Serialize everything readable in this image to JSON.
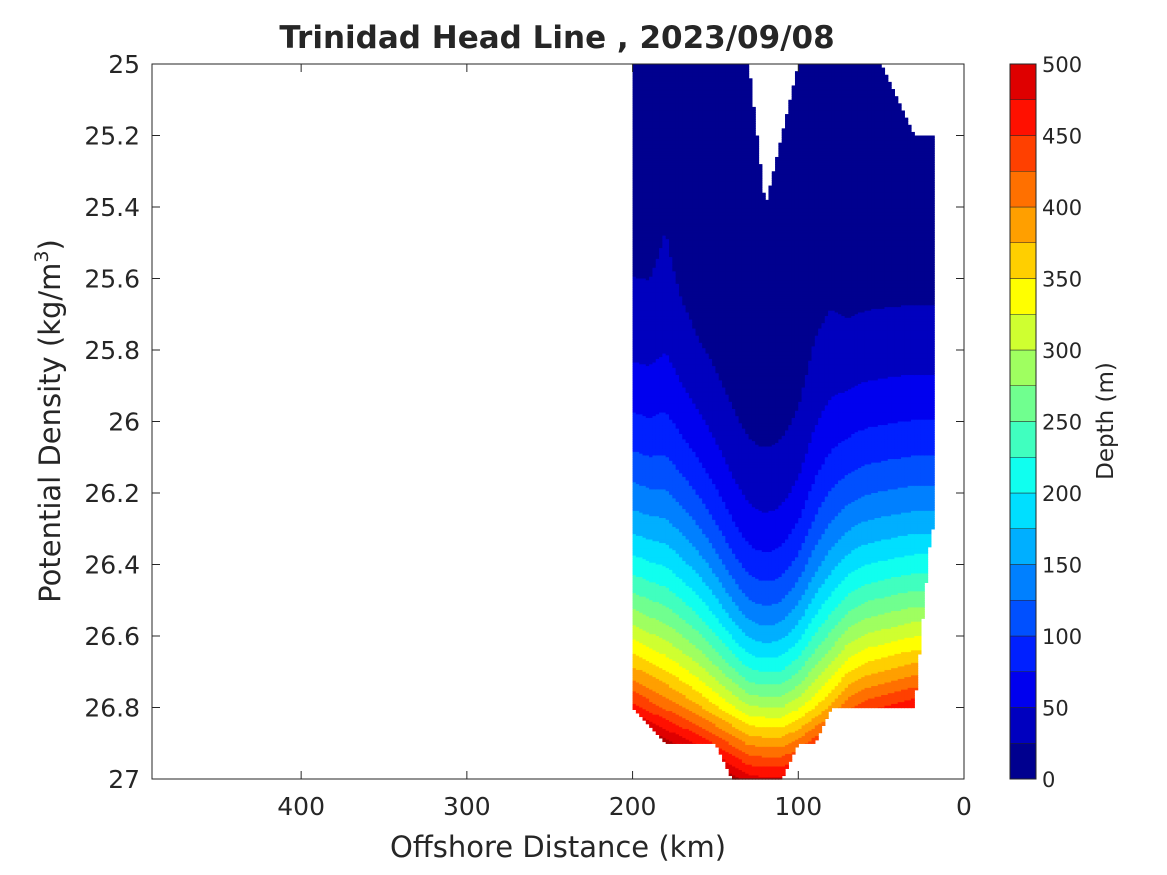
{
  "chart_data": {
    "type": "contour",
    "title": "Trinidad Head Line , 2023/09/08",
    "xlabel": "Offshore Distance (km)",
    "ylabel_main": "Potential Density (kg/m",
    "ylabel_sup": "3",
    "ylabel_close": ")",
    "xlim": [
      490,
      0
    ],
    "ylim": [
      25,
      27
    ],
    "x_reversed": true,
    "y_reversed": true,
    "grid": false,
    "xticks": [
      {
        "value": 400,
        "label": "400"
      },
      {
        "value": 300,
        "label": "300"
      },
      {
        "value": 200,
        "label": "200"
      },
      {
        "value": 100,
        "label": "100"
      },
      {
        "value": 0,
        "label": "0"
      }
    ],
    "yticks": [
      {
        "value": 25.0,
        "label": "25"
      },
      {
        "value": 25.2,
        "label": "25.2"
      },
      {
        "value": 25.4,
        "label": "25.4"
      },
      {
        "value": 25.6,
        "label": "25.6"
      },
      {
        "value": 25.8,
        "label": "25.8"
      },
      {
        "value": 26.0,
        "label": "26"
      },
      {
        "value": 26.2,
        "label": "26.2"
      },
      {
        "value": 26.4,
        "label": "26.4"
      },
      {
        "value": 26.6,
        "label": "26.6"
      },
      {
        "value": 26.8,
        "label": "26.8"
      },
      {
        "value": 27.0,
        "label": "27"
      }
    ],
    "colorbar": {
      "label": "Depth (m)",
      "range": [
        0,
        500
      ],
      "levels": [
        0,
        25,
        50,
        75,
        100,
        125,
        150,
        175,
        200,
        225,
        250,
        275,
        300,
        325,
        350,
        375,
        400,
        425,
        450,
        475,
        500
      ],
      "colors": [
        "#00008f",
        "#0000bf",
        "#0000ef",
        "#0020ff",
        "#0050ff",
        "#0080ff",
        "#00afff",
        "#00dfff",
        "#10ffef",
        "#40ffbf",
        "#70ff8f",
        "#9fff60",
        "#cfff30",
        "#ffff00",
        "#ffcf00",
        "#ff9f00",
        "#ff7000",
        "#ff4000",
        "#ff1000",
        "#df0000",
        "#af0000"
      ],
      "ticks": [
        {
          "value": 0,
          "label": "0"
        },
        {
          "value": 50,
          "label": "50"
        },
        {
          "value": 100,
          "label": "100"
        },
        {
          "value": 150,
          "label": "150"
        },
        {
          "value": 200,
          "label": "200"
        },
        {
          "value": 250,
          "label": "250"
        },
        {
          "value": 300,
          "label": "300"
        },
        {
          "value": 350,
          "label": "350"
        },
        {
          "value": 400,
          "label": "400"
        },
        {
          "value": 450,
          "label": "450"
        },
        {
          "value": 500,
          "label": "500"
        }
      ]
    },
    "stations_km": [
      200,
      190,
      180,
      170,
      160,
      150,
      140,
      130,
      120,
      110,
      100,
      90,
      80,
      70,
      60,
      50,
      40,
      30,
      20
    ],
    "depth_fields": {
      "top_max_density": [
        25.0,
        25.0,
        25.0,
        25.0,
        25.0,
        25.0,
        25.0,
        25.0,
        25.4,
        25.2,
        25.0,
        25.0,
        25.0,
        25.0,
        25.0,
        25.0,
        25.1,
        25.2,
        25.2
      ],
      "bottom_max_density": [
        26.8,
        26.85,
        26.9,
        26.9,
        26.9,
        26.9,
        27.0,
        27.0,
        27.0,
        27.0,
        26.9,
        26.9,
        26.8,
        26.8,
        26.8,
        26.8,
        26.8,
        26.8,
        26.3
      ],
      "depth_at_26_8": [
        460,
        440,
        420,
        400,
        380,
        355,
        330,
        305,
        300,
        300,
        320,
        350,
        380,
        420,
        440,
        450,
        460,
        470,
        470
      ],
      "trough_center_km": 120,
      "shallow_layer_depths_m": [
        12,
        12,
        20,
        10,
        5,
        5,
        5,
        5,
        5,
        5,
        5,
        12,
        12,
        5,
        5,
        5,
        5,
        5,
        5
      ]
    }
  }
}
